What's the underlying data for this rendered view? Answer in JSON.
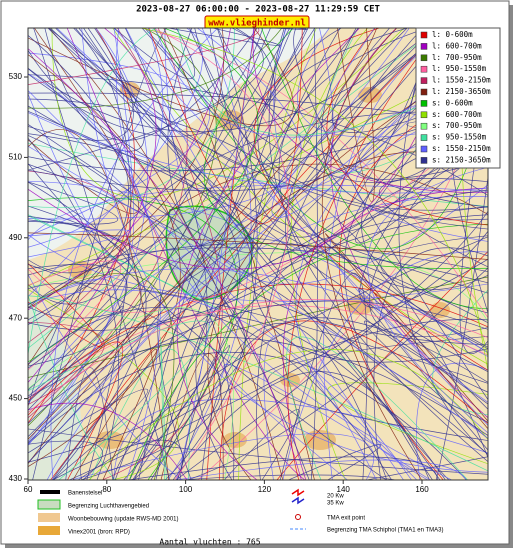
{
  "header": {
    "title": "2023-08-27 06:00:00 - 2023-08-27 11:29:59 CET",
    "site": "www.vlieghinder.nl"
  },
  "axes": {
    "xticks": [
      60,
      80,
      100,
      120,
      140,
      160
    ],
    "yticks": [
      430,
      450,
      470,
      490,
      510,
      530
    ]
  },
  "legend": [
    {
      "label": "l: 0-600m",
      "color": "#e00000"
    },
    {
      "label": "l: 600-700m",
      "color": "#a000c0"
    },
    {
      "label": "l: 700-950m",
      "color": "#3a7a00"
    },
    {
      "label": "l: 950-1550m",
      "color": "#ff60a0"
    },
    {
      "label": "l: 1550-2150m",
      "color": "#c02060"
    },
    {
      "label": "l: 2150-3650m",
      "color": "#802010"
    },
    {
      "label": "s: 0-600m",
      "color": "#00c000"
    },
    {
      "label": "s: 600-700m",
      "color": "#90e000"
    },
    {
      "label": "s: 700-950m",
      "color": "#80ff80"
    },
    {
      "label": "s: 950-1550m",
      "color": "#40e0a0"
    },
    {
      "label": "s: 1550-2150m",
      "color": "#6060ff"
    },
    {
      "label": "s: 2150-3650m",
      "color": "#303090"
    }
  ],
  "map_key": {
    "runways": "Banenstelsel",
    "airport_boundary": "Begrenzing Luchthavengebied",
    "housing": "Woonbebouwing (update RWS-MD 2001)",
    "vinex": "Vinex2001 (bron: RPD)",
    "kw20": "20 Kw",
    "kw35": "35 Kw",
    "tma_exit": "TMA exit point",
    "tma_boundary": "Begrenzing TMA Schiphol  (TMA1 en TMA3)"
  },
  "footer": "Aantal vluchten : 765"
}
